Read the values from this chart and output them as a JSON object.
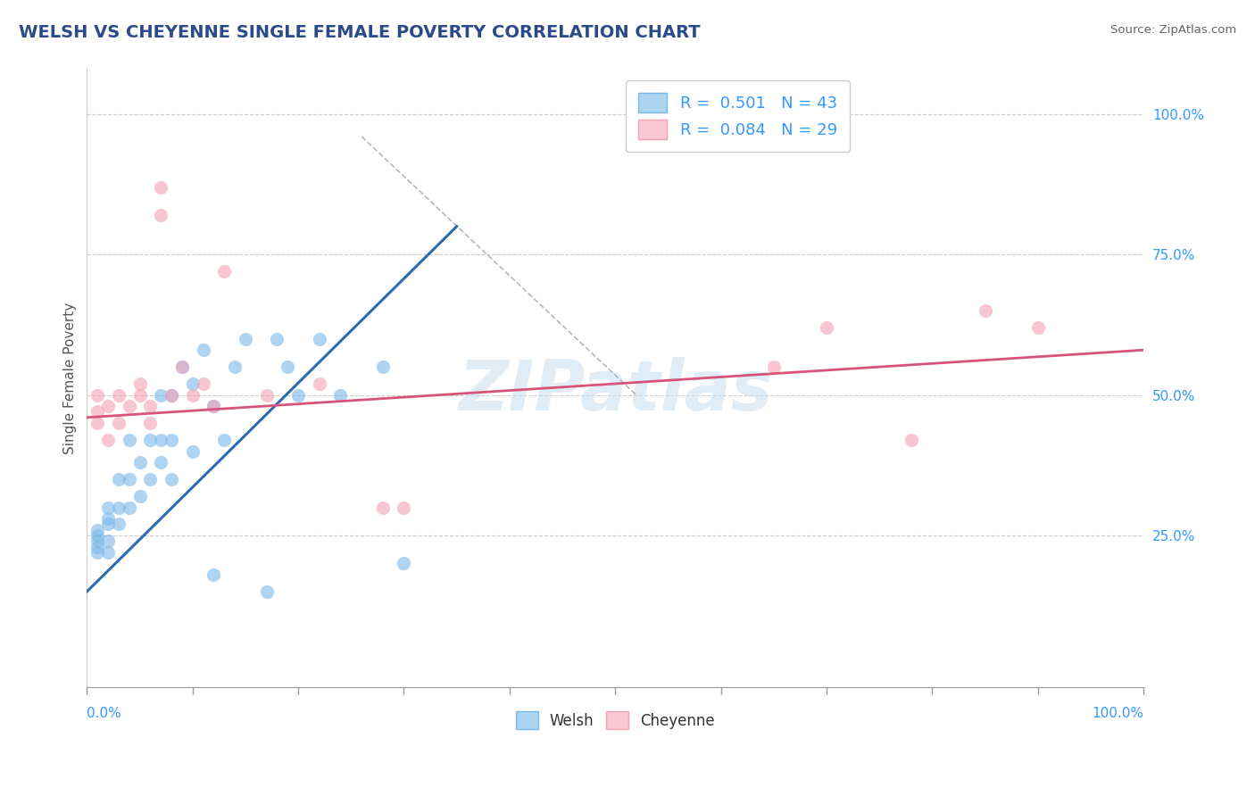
{
  "title": "WELSH VS CHEYENNE SINGLE FEMALE POVERTY CORRELATION CHART",
  "source": "Source: ZipAtlas.com",
  "ylabel": "Single Female Poverty",
  "xlim": [
    0.0,
    1.0
  ],
  "ylim": [
    -0.02,
    1.08
  ],
  "welsh_color": "#7ab8e8",
  "cheyenne_color": "#f4a0b5",
  "welsh_line_color": "#2b6cb0",
  "cheyenne_line_color": "#d6547a",
  "watermark": "ZIPatlas",
  "legend_label_welsh": "R =  0.501   N = 43",
  "legend_label_cheyenne": "R =  0.084   N = 29",
  "legend_box_labels": [
    "Welsh",
    "Cheyenne"
  ],
  "welsh_scatter_x": [
    0.01,
    0.01,
    0.01,
    0.01,
    0.01,
    0.02,
    0.02,
    0.02,
    0.02,
    0.02,
    0.03,
    0.03,
    0.03,
    0.04,
    0.04,
    0.04,
    0.05,
    0.05,
    0.06,
    0.06,
    0.07,
    0.07,
    0.07,
    0.08,
    0.08,
    0.08,
    0.09,
    0.1,
    0.1,
    0.11,
    0.12,
    0.12,
    0.13,
    0.14,
    0.15,
    0.17,
    0.18,
    0.19,
    0.2,
    0.22,
    0.24,
    0.28,
    0.3
  ],
  "welsh_scatter_y": [
    0.22,
    0.23,
    0.24,
    0.25,
    0.26,
    0.22,
    0.24,
    0.27,
    0.28,
    0.3,
    0.27,
    0.3,
    0.35,
    0.3,
    0.35,
    0.42,
    0.32,
    0.38,
    0.35,
    0.42,
    0.38,
    0.42,
    0.5,
    0.35,
    0.42,
    0.5,
    0.55,
    0.4,
    0.52,
    0.58,
    0.18,
    0.48,
    0.42,
    0.55,
    0.6,
    0.15,
    0.6,
    0.55,
    0.5,
    0.6,
    0.5,
    0.55,
    0.2
  ],
  "cheyenne_scatter_x": [
    0.01,
    0.01,
    0.01,
    0.02,
    0.02,
    0.03,
    0.03,
    0.04,
    0.05,
    0.05,
    0.06,
    0.06,
    0.07,
    0.07,
    0.08,
    0.09,
    0.1,
    0.11,
    0.12,
    0.13,
    0.17,
    0.22,
    0.28,
    0.3,
    0.65,
    0.7,
    0.78,
    0.85,
    0.9
  ],
  "cheyenne_scatter_y": [
    0.45,
    0.47,
    0.5,
    0.42,
    0.48,
    0.45,
    0.5,
    0.48,
    0.5,
    0.52,
    0.45,
    0.48,
    0.82,
    0.87,
    0.5,
    0.55,
    0.5,
    0.52,
    0.48,
    0.72,
    0.5,
    0.52,
    0.3,
    0.3,
    0.55,
    0.62,
    0.42,
    0.65,
    0.62
  ],
  "welsh_trend_x": [
    0.0,
    0.35
  ],
  "welsh_trend_y": [
    0.15,
    0.8
  ],
  "cheyenne_trend_x": [
    0.0,
    1.0
  ],
  "cheyenne_trend_y": [
    0.46,
    0.58
  ],
  "ref_line_x": [
    0.26,
    0.52
  ],
  "ref_line_y": [
    0.96,
    0.5
  ],
  "ytick_values": [
    0.25,
    0.5,
    0.75,
    1.0
  ],
  "ytick_labels": [
    "25.0%",
    "50.0%",
    "75.0%",
    "100.0%"
  ],
  "xtick_edge_values": [
    0.0,
    1.0
  ],
  "xtick_edge_labels": [
    "0.0%",
    "100.0%"
  ],
  "background_color": "#ffffff",
  "grid_color": "#cccccc"
}
